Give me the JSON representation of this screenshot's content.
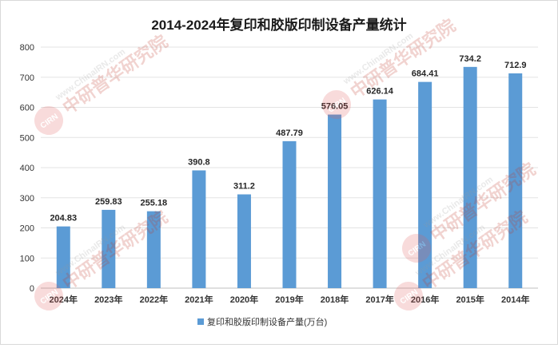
{
  "chart_data": {
    "type": "bar",
    "title": "2014-2024年复印和胶版印制设备产量统计",
    "categories": [
      "2024年",
      "2023年",
      "2022年",
      "2021年",
      "2020年",
      "2019年",
      "2018年",
      "2017年",
      "2016年",
      "2015年",
      "2014年"
    ],
    "series": [
      {
        "name": "复印和胶版印制设备产量(万台)",
        "values": [
          204.83,
          259.83,
          255.18,
          390.8,
          311.2,
          487.79,
          576.05,
          626.14,
          684.41,
          734.2,
          712.9
        ],
        "labels": [
          "204.83",
          "259.83",
          "255.18",
          "390.8",
          "311.2",
          "487.79",
          "576.05",
          "626.14",
          "684.41",
          "734.2",
          "712.9"
        ],
        "color": "#5b9bd5"
      }
    ],
    "yticks": [
      "0",
      "100",
      "200",
      "300",
      "400",
      "500",
      "600",
      "700",
      "800"
    ],
    "ylim": [
      0,
      800
    ],
    "grid": true,
    "legend_position": "bottom"
  },
  "watermark": {
    "url": "www.ChinaIRN.com",
    "brand": "中研普华研究院",
    "logo": "CIRN"
  }
}
